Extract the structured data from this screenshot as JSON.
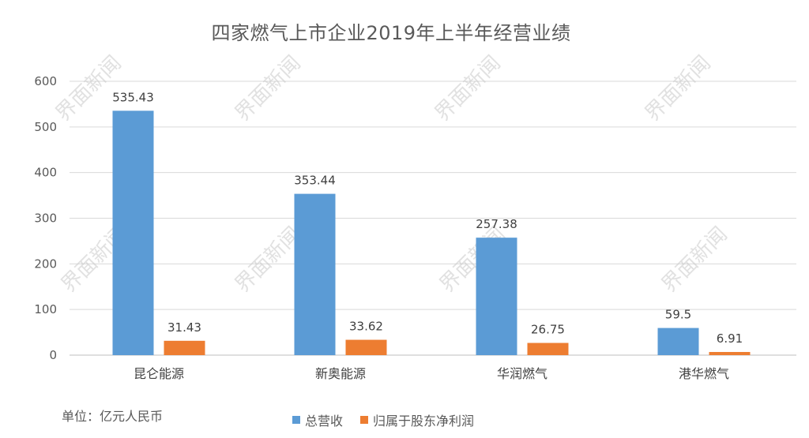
{
  "chart_data": {
    "type": "bar",
    "title": "四家燃气上市企业2019年上半年经营业绩",
    "unit_note": "单位：亿元人民币",
    "watermark": "界面新闻",
    "categories": [
      "昆仑能源",
      "新奥能源",
      "华润燃气",
      "港华燃气"
    ],
    "series": [
      {
        "name": "总营收",
        "color": "#5b9bd5",
        "values": [
          535.43,
          353.44,
          257.38,
          59.5
        ],
        "labels": [
          "535.43",
          "353.44",
          "257.38",
          "59.5"
        ]
      },
      {
        "name": "归属于股东净利润",
        "color": "#ed7d31",
        "values": [
          31.43,
          33.62,
          26.75,
          6.91
        ],
        "labels": [
          "31.43",
          "33.62",
          "26.75",
          "6.91"
        ]
      }
    ],
    "y_ticks": [
      "0",
      "100",
      "200",
      "300",
      "400",
      "500",
      "600"
    ],
    "ylim": [
      0,
      600
    ],
    "grid": true,
    "legend_position": "bottom"
  }
}
